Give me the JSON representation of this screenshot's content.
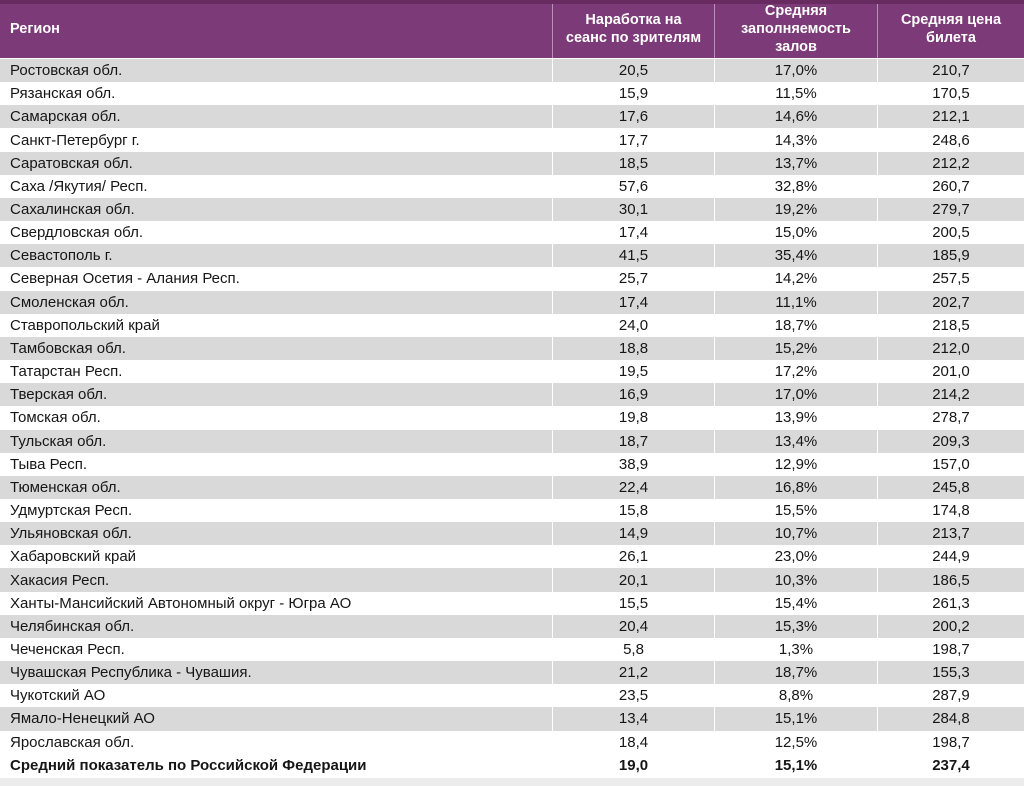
{
  "table": {
    "columns": [
      {
        "key": "region",
        "label": "Регион"
      },
      {
        "key": "sessions",
        "label": "Наработка на сеанс по зрителям"
      },
      {
        "key": "occupancy",
        "label": "Средняя заполняемость залов"
      },
      {
        "key": "price",
        "label": "Средняя цена билета"
      }
    ],
    "rows": [
      [
        "Ростовская обл.",
        "20,5",
        "17,0%",
        "210,7"
      ],
      [
        "Рязанская обл.",
        "15,9",
        "11,5%",
        "170,5"
      ],
      [
        "Самарская обл.",
        "17,6",
        "14,6%",
        "212,1"
      ],
      [
        "Санкт-Петербург г.",
        "17,7",
        "14,3%",
        "248,6"
      ],
      [
        "Саратовская обл.",
        "18,5",
        "13,7%",
        "212,2"
      ],
      [
        "Саха /Якутия/ Респ.",
        "57,6",
        "32,8%",
        "260,7"
      ],
      [
        "Сахалинская обл.",
        "30,1",
        "19,2%",
        "279,7"
      ],
      [
        "Свердловская обл.",
        "17,4",
        "15,0%",
        "200,5"
      ],
      [
        "Севастополь г.",
        "41,5",
        "35,4%",
        "185,9"
      ],
      [
        "Северная Осетия - Алания Респ.",
        "25,7",
        "14,2%",
        "257,5"
      ],
      [
        "Смоленская обл.",
        "17,4",
        "11,1%",
        "202,7"
      ],
      [
        "Ставропольский край",
        "24,0",
        "18,7%",
        "218,5"
      ],
      [
        "Тамбовская обл.",
        "18,8",
        "15,2%",
        "212,0"
      ],
      [
        "Татарстан Респ.",
        "19,5",
        "17,2%",
        "201,0"
      ],
      [
        "Тверская обл.",
        "16,9",
        "17,0%",
        "214,2"
      ],
      [
        "Томская обл.",
        "19,8",
        "13,9%",
        "278,7"
      ],
      [
        "Тульская обл.",
        "18,7",
        "13,4%",
        "209,3"
      ],
      [
        "Тыва Респ.",
        "38,9",
        "12,9%",
        "157,0"
      ],
      [
        "Тюменская обл.",
        "22,4",
        "16,8%",
        "245,8"
      ],
      [
        "Удмуртская Респ.",
        "15,8",
        "15,5%",
        "174,8"
      ],
      [
        "Ульяновская обл.",
        "14,9",
        "10,7%",
        "213,7"
      ],
      [
        "Хабаровский край",
        "26,1",
        "23,0%",
        "244,9"
      ],
      [
        "Хакасия Респ.",
        "20,1",
        "10,3%",
        "186,5"
      ],
      [
        "Ханты-Мансийский Автономный округ - Югра АО",
        "15,5",
        "15,4%",
        "261,3"
      ],
      [
        "Челябинская обл.",
        "20,4",
        "15,3%",
        "200,2"
      ],
      [
        "Чеченская Респ.",
        "5,8",
        "1,3%",
        "198,7"
      ],
      [
        "Чувашская Республика - Чувашия.",
        "21,2",
        "18,7%",
        "155,3"
      ],
      [
        "Чукотский АО",
        "23,5",
        "8,8%",
        "287,9"
      ],
      [
        "Ямало-Ненецкий АО",
        "13,4",
        "15,1%",
        "284,8"
      ],
      [
        "Ярославская обл.",
        "18,4",
        "12,5%",
        "198,7"
      ]
    ],
    "summary_row": [
      "Средний показатель по Российской Федерации",
      "19,0",
      "15,1%",
      "237,4"
    ],
    "colors": {
      "header_bg": "#7d3a78",
      "header_strip": "#682b60",
      "header_text": "#ffffff",
      "row_alt_bg": "#d9d9d9",
      "row_bg": "#ffffff",
      "bottom_strip": "#ececec",
      "text": "#161616"
    }
  }
}
